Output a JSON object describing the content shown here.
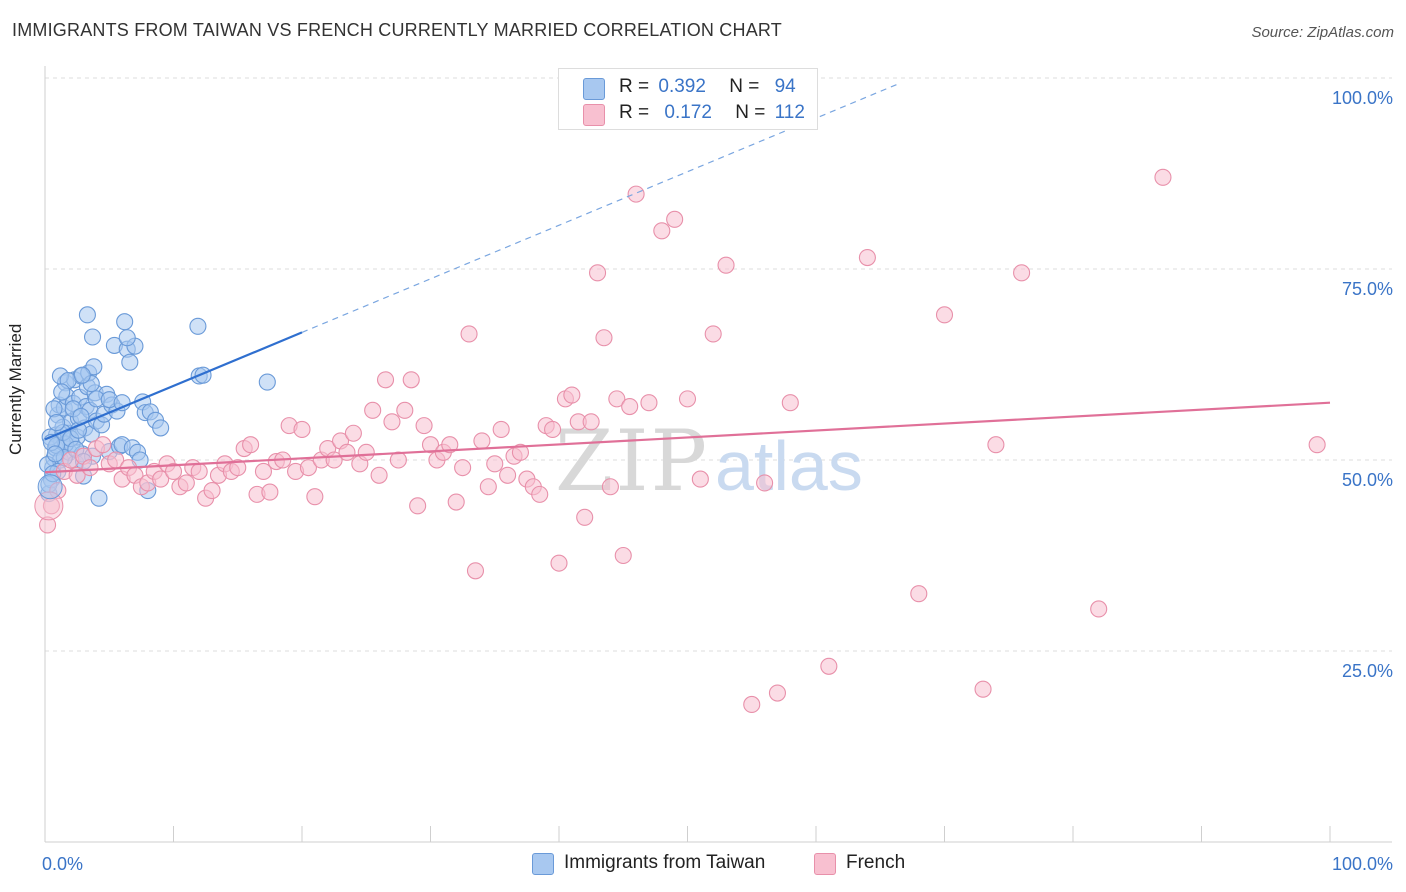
{
  "title": "IMMIGRANTS FROM TAIWAN VS FRENCH CURRENTLY MARRIED CORRELATION CHART",
  "source": "Source: ZipAtlas.com",
  "watermark": {
    "zip": "ZIP",
    "atlas": "atlas"
  },
  "legend": {
    "rows": [
      {
        "r_label": "R =",
        "r_value": "0.392",
        "n_label": "N =",
        "n_value": "94",
        "color": "#a8c8f0",
        "border": "#6a9ad8"
      },
      {
        "r_label": "R =",
        "r_value": "0.172",
        "n_label": "N =",
        "n_value": "112",
        "color": "#f8c0d0",
        "border": "#e890aa"
      }
    ]
  },
  "bottom_legend": [
    {
      "label": "Immigrants from Taiwan",
      "color": "#a8c8f0",
      "border": "#6a9ad8"
    },
    {
      "label": "French",
      "color": "#f8c0d0",
      "border": "#e890aa"
    }
  ],
  "chart_data": {
    "type": "scatter",
    "title": "IMMIGRANTS FROM TAIWAN VS FRENCH CURRENTLY MARRIED CORRELATION CHART",
    "xlabel": "",
    "ylabel": "Currently Married",
    "xlim": [
      0,
      100
    ],
    "ylim": [
      0,
      100
    ],
    "x_tick_labels": [
      "0.0%",
      "100.0%"
    ],
    "y_tick_labels": [
      "100.0%",
      "75.0%",
      "50.0%",
      "25.0%"
    ],
    "y_ticks": [
      100,
      75,
      50,
      25
    ],
    "grid": true,
    "legend_position": "top-center",
    "series": [
      {
        "name": "Immigrants from Taiwan",
        "color": "#6a9ad8",
        "fill": "#a8c8f0",
        "trend": {
          "x0": 0,
          "y0": 52.7,
          "x1": 20,
          "y1": 66.7,
          "dashed_to_x": 66.5,
          "dashed_to_y": 99.3
        },
        "points": [
          [
            0.3,
            45.6
          ],
          [
            0.5,
            47.4
          ],
          [
            0.6,
            49.0
          ],
          [
            0.7,
            50.2
          ],
          [
            0.8,
            51.6
          ],
          [
            0.9,
            53.3
          ],
          [
            1.0,
            55.9
          ],
          [
            1.1,
            57.2
          ],
          [
            1.2,
            50.0
          ],
          [
            1.3,
            52.4
          ],
          [
            1.4,
            54.3
          ],
          [
            1.5,
            56.8
          ],
          [
            1.6,
            60.1
          ],
          [
            1.7,
            58.3
          ],
          [
            1.8,
            53.5
          ],
          [
            1.9,
            51.0
          ],
          [
            2.0,
            55.0
          ],
          [
            2.1,
            52.1
          ],
          [
            2.2,
            57.4
          ],
          [
            2.3,
            60.5
          ],
          [
            2.4,
            49.6
          ],
          [
            2.5,
            53.0
          ],
          [
            2.6,
            55.5
          ],
          [
            2.7,
            58.2
          ],
          [
            2.8,
            61.0
          ],
          [
            2.9,
            50.8
          ],
          [
            3.0,
            47.9
          ],
          [
            3.1,
            54.2
          ],
          [
            3.2,
            57.0
          ],
          [
            3.3,
            59.6
          ],
          [
            3.4,
            61.4
          ],
          [
            3.5,
            56.5
          ],
          [
            3.6,
            53.4
          ],
          [
            3.7,
            50.5
          ],
          [
            3.8,
            62.2
          ],
          [
            3.9,
            58.8
          ],
          [
            4.0,
            55.1
          ],
          [
            4.2,
            45.0
          ],
          [
            4.4,
            54.6
          ],
          [
            4.6,
            56.0
          ],
          [
            4.8,
            58.6
          ],
          [
            5.0,
            51.1
          ],
          [
            5.2,
            57.2
          ],
          [
            5.4,
            65.0
          ],
          [
            5.6,
            56.4
          ],
          [
            5.8,
            51.8
          ],
          [
            6.0,
            52.0
          ],
          [
            6.2,
            68.1
          ],
          [
            6.4,
            64.5
          ],
          [
            6.6,
            62.8
          ],
          [
            6.8,
            51.6
          ],
          [
            7.0,
            64.9
          ],
          [
            7.2,
            51.0
          ],
          [
            7.4,
            50.0
          ],
          [
            7.6,
            57.6
          ],
          [
            7.8,
            56.2
          ],
          [
            8.0,
            46.0
          ],
          [
            8.2,
            56.3
          ],
          [
            8.6,
            55.2
          ],
          [
            9.0,
            54.2
          ],
          [
            11.9,
            67.5
          ],
          [
            12.0,
            61.0
          ],
          [
            12.3,
            61.1
          ],
          [
            17.3,
            60.2
          ],
          [
            1.2,
            61.0
          ],
          [
            3.7,
            66.1
          ],
          [
            6.4,
            66.0
          ],
          [
            3.3,
            69.0
          ],
          [
            2.2,
            56.7
          ],
          [
            1.6,
            52.1
          ],
          [
            0.4,
            53.0
          ],
          [
            0.9,
            51.9
          ],
          [
            1.4,
            53.6
          ],
          [
            2.0,
            52.8
          ],
          [
            2.6,
            53.9
          ],
          [
            0.7,
            56.7
          ],
          [
            1.8,
            60.4
          ],
          [
            2.8,
            55.7
          ],
          [
            0.2,
            49.4
          ],
          [
            0.5,
            52.3
          ],
          [
            1.0,
            48.5
          ],
          [
            1.5,
            50.3
          ],
          [
            2.4,
            51.4
          ],
          [
            3.0,
            49.8
          ],
          [
            0.3,
            46.8
          ],
          [
            0.6,
            48.2
          ],
          [
            0.8,
            50.8
          ],
          [
            4.0,
            58.0
          ],
          [
            5.0,
            57.9
          ],
          [
            6.0,
            57.5
          ],
          [
            3.6,
            60.0
          ],
          [
            2.9,
            61.1
          ],
          [
            1.3,
            58.9
          ],
          [
            0.9,
            54.9
          ]
        ]
      },
      {
        "name": "French",
        "color": "#e890aa",
        "fill": "#f8c0d0",
        "trend": {
          "x0": 0,
          "y0": 48.4,
          "x1": 100,
          "y1": 57.5
        },
        "points": [
          [
            0.2,
            41.5
          ],
          [
            0.5,
            44.0
          ],
          [
            1.0,
            46.0
          ],
          [
            1.5,
            48.5
          ],
          [
            2.0,
            50.0
          ],
          [
            2.5,
            48.0
          ],
          [
            3.0,
            50.5
          ],
          [
            3.5,
            49.0
          ],
          [
            4.0,
            51.5
          ],
          [
            4.5,
            52.0
          ],
          [
            5.0,
            49.5
          ],
          [
            5.5,
            50.0
          ],
          [
            6.0,
            47.5
          ],
          [
            6.5,
            49.0
          ],
          [
            7.0,
            48.0
          ],
          [
            7.5,
            46.5
          ],
          [
            8.0,
            47.0
          ],
          [
            8.5,
            48.5
          ],
          [
            9.0,
            47.5
          ],
          [
            9.5,
            49.5
          ],
          [
            10.0,
            48.5
          ],
          [
            10.5,
            46.5
          ],
          [
            11.0,
            47.0
          ],
          [
            11.5,
            49.0
          ],
          [
            12.0,
            48.5
          ],
          [
            12.5,
            45.0
          ],
          [
            13.0,
            46.0
          ],
          [
            13.5,
            48.0
          ],
          [
            14.0,
            49.5
          ],
          [
            14.5,
            48.5
          ],
          [
            15.0,
            49.0
          ],
          [
            15.5,
            51.5
          ],
          [
            16.0,
            52.0
          ],
          [
            16.5,
            45.5
          ],
          [
            17.0,
            48.5
          ],
          [
            17.5,
            45.8
          ],
          [
            18.0,
            49.8
          ],
          [
            18.5,
            50.0
          ],
          [
            19.0,
            54.5
          ],
          [
            19.5,
            48.5
          ],
          [
            20.0,
            54.0
          ],
          [
            20.5,
            49.0
          ],
          [
            21.0,
            45.2
          ],
          [
            21.5,
            50.0
          ],
          [
            22.0,
            51.5
          ],
          [
            22.5,
            50.0
          ],
          [
            23.0,
            52.5
          ],
          [
            23.5,
            51.0
          ],
          [
            24.0,
            53.5
          ],
          [
            24.5,
            49.5
          ],
          [
            25.0,
            51.0
          ],
          [
            25.5,
            56.5
          ],
          [
            26.0,
            48.0
          ],
          [
            26.5,
            60.5
          ],
          [
            27.0,
            55.0
          ],
          [
            27.5,
            50.0
          ],
          [
            28.0,
            56.5
          ],
          [
            28.5,
            60.5
          ],
          [
            29.0,
            44.0
          ],
          [
            29.5,
            54.5
          ],
          [
            30.0,
            52.0
          ],
          [
            30.5,
            50.0
          ],
          [
            31.0,
            51.0
          ],
          [
            31.5,
            52.0
          ],
          [
            32.0,
            44.5
          ],
          [
            32.5,
            49.0
          ],
          [
            33.0,
            66.5
          ],
          [
            33.5,
            35.5
          ],
          [
            34.0,
            52.5
          ],
          [
            34.5,
            46.5
          ],
          [
            35.0,
            49.5
          ],
          [
            35.5,
            54.0
          ],
          [
            36.0,
            48.0
          ],
          [
            36.5,
            50.5
          ],
          [
            37.0,
            51.0
          ],
          [
            37.5,
            47.5
          ],
          [
            38.0,
            46.5
          ],
          [
            38.5,
            45.5
          ],
          [
            39.0,
            54.5
          ],
          [
            39.5,
            54.0
          ],
          [
            40.0,
            36.5
          ],
          [
            40.5,
            58.0
          ],
          [
            41.0,
            58.5
          ],
          [
            41.5,
            55.0
          ],
          [
            42.0,
            42.5
          ],
          [
            42.5,
            55.0
          ],
          [
            43.0,
            74.5
          ],
          [
            43.5,
            66.0
          ],
          [
            44.0,
            46.5
          ],
          [
            44.5,
            58.0
          ],
          [
            45.0,
            37.5
          ],
          [
            45.5,
            57.0
          ],
          [
            46.0,
            84.8
          ],
          [
            47.0,
            57.5
          ],
          [
            48.0,
            80.0
          ],
          [
            49.0,
            81.5
          ],
          [
            50.0,
            58.0
          ],
          [
            51.0,
            47.5
          ],
          [
            52.0,
            66.5
          ],
          [
            53.0,
            75.5
          ],
          [
            55.0,
            18.0
          ],
          [
            56.0,
            47.0
          ],
          [
            57.0,
            19.5
          ],
          [
            58.0,
            57.5
          ],
          [
            61.0,
            23.0
          ],
          [
            64.0,
            76.5
          ],
          [
            68.0,
            32.5
          ],
          [
            70.0,
            69.0
          ],
          [
            73.0,
            20.0
          ],
          [
            74.0,
            52.0
          ],
          [
            76.0,
            74.5
          ],
          [
            82.0,
            30.5
          ],
          [
            87.0,
            87.0
          ],
          [
            99.0,
            52.0
          ]
        ]
      }
    ]
  }
}
